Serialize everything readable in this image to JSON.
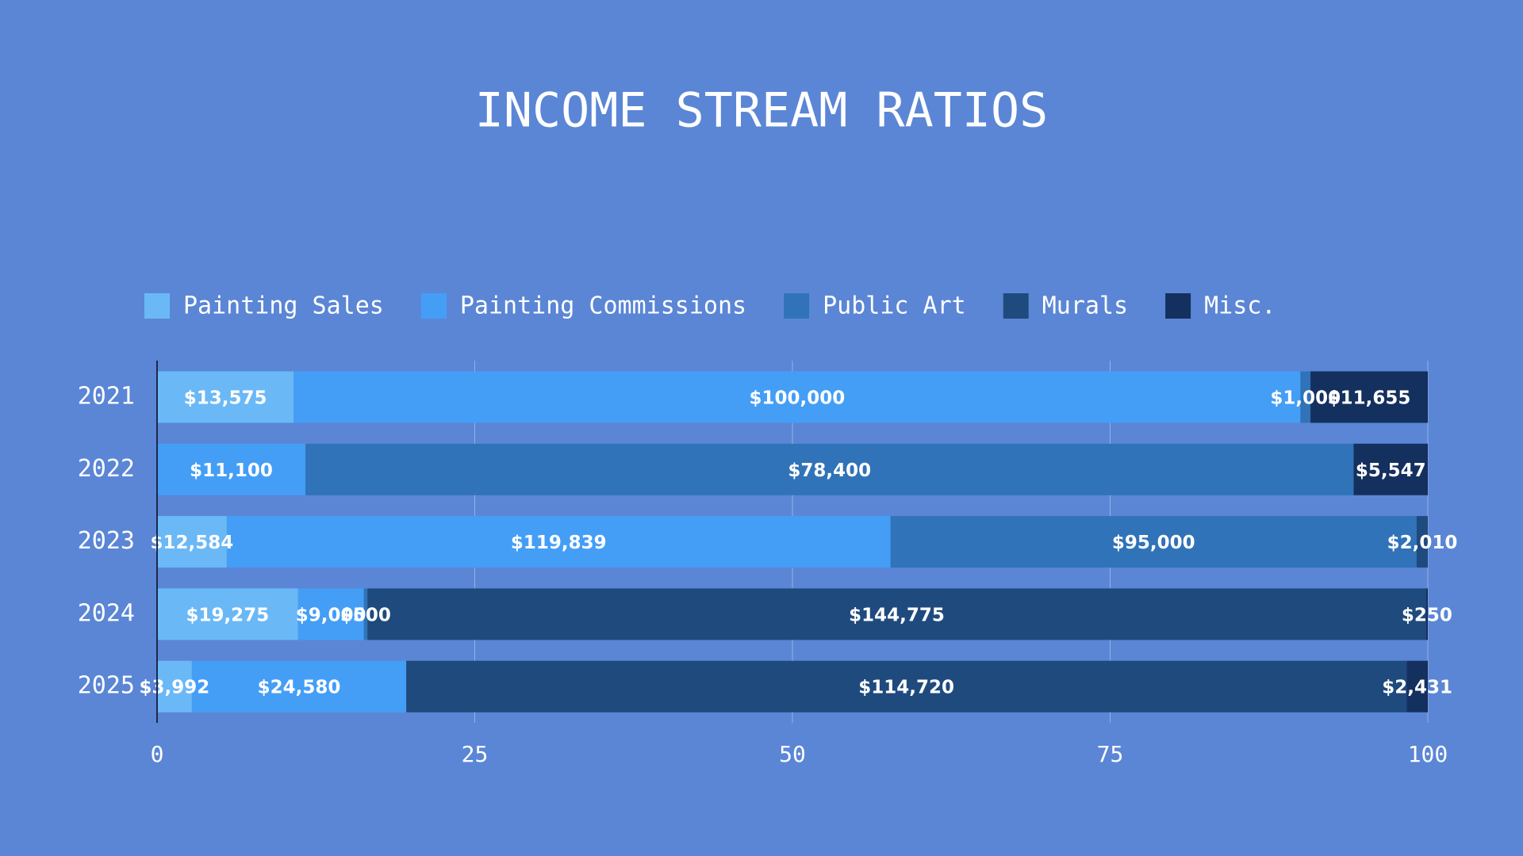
{
  "chart_data": {
    "type": "bar",
    "orientation": "horizontal",
    "stack": "percent",
    "title": "INCOME STREAM RATIOS",
    "categories": [
      "2021",
      "2022",
      "2023",
      "2024",
      "2025"
    ],
    "series": [
      {
        "name": "Painting Sales",
        "color": "#6bb8f7",
        "values": [
          13575,
          null,
          12584,
          19275,
          3992
        ],
        "value_labels": [
          "$13,575",
          null,
          "$12,584",
          "$19,275",
          "$3,992"
        ]
      },
      {
        "name": "Painting Commissions",
        "color": "#449ef6",
        "values": [
          100000,
          11100,
          119839,
          9000,
          24580
        ],
        "value_labels": [
          "$100,000",
          "$11,100",
          "$119,839",
          "$9,000",
          "$24,580"
        ]
      },
      {
        "name": "Public Art",
        "color": "#3073b8",
        "values": [
          1000,
          78400,
          95000,
          500,
          null
        ],
        "value_labels": [
          "$1,000",
          "$78,400",
          "$95,000",
          "$500",
          null
        ]
      },
      {
        "name": "Murals",
        "color": "#1f4a7e",
        "values": [
          null,
          null,
          2010,
          144775,
          114720
        ],
        "value_labels": [
          null,
          null,
          "$2,010",
          "$144,775",
          "$114,720"
        ]
      },
      {
        "name": "Misc.",
        "color": "#14305e",
        "values": [
          11655,
          5547,
          null,
          250,
          2431
        ],
        "value_labels": [
          "$11,655",
          "$5,547",
          null,
          "$250",
          "$2,431"
        ]
      }
    ],
    "xlim": [
      0,
      100
    ],
    "xticks": [
      0,
      25,
      50,
      75,
      100
    ],
    "grid": true,
    "legend": "top"
  }
}
